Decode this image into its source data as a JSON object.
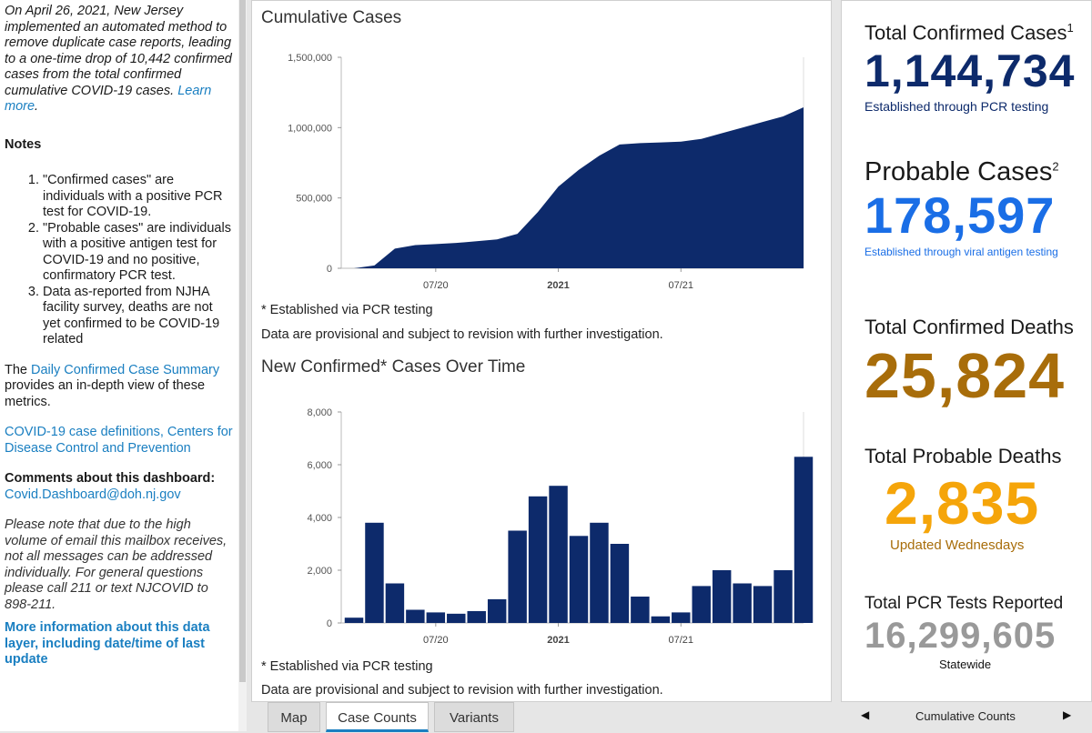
{
  "sidebar": {
    "notice": "On April 26, 2021, New Jersey implemented an automated method to remove duplicate case reports, leading to a one-time drop of 10,442 confirmed cases from the total confirmed cumulative COVID-19 cases.",
    "notice_link": "Learn more",
    "notes_heading": "Notes",
    "notes": [
      "\"Confirmed cases\" are individuals with a positive PCR test for COVID-19.",
      "\"Probable cases\" are individuals with a positive antigen test for COVID-19 and no positive, confirmatory PCR test.",
      "Data as-reported from NJHA facility survey, deaths are not yet confirmed to be COVID-19 related"
    ],
    "summary_prefix": "The ",
    "summary_link": "Daily Confirmed Case Summary",
    "summary_suffix": " provides an in-depth view of these metrics.",
    "cdc_link": "COVID-19 case definitions, Centers for Disease Control and Prevention",
    "comments_label": "Comments about this dashboard:",
    "comments_email": "Covid.Dashboard@doh.nj.gov",
    "email_note": "Please note that due to the high volume of email this mailbox receives, not all messages can be addressed individually. For general questions please call 211 or text NJCOVID to 898-211.",
    "more_info": "More information about this data layer, including date/time of last update"
  },
  "center": {
    "chart1_title": "Cumulative Cases",
    "chart1_note1": "* Established via PCR testing",
    "chart1_note2": "Data are provisional and subject to revision with further investigation.",
    "chart2_title": "New Confirmed* Cases Over Time",
    "chart2_note1": "* Established via PCR testing",
    "chart2_note2": "Data are provisional and subject to revision with further investigation."
  },
  "chart_data": [
    {
      "type": "area",
      "title": "Cumulative Cases",
      "x_ticks": [
        "07/20",
        "2021",
        "07/21"
      ],
      "y_ticks": [
        "0",
        "500,000",
        "1,000,000",
        "1,500,000"
      ],
      "ylim": [
        0,
        1500000
      ],
      "color": "#0d2a6b",
      "x": [
        "2020-03",
        "2020-04",
        "2020-05",
        "2020-06",
        "2020-07",
        "2020-08",
        "2020-09",
        "2020-10",
        "2020-11",
        "2020-12",
        "2021-01",
        "2021-02",
        "2021-03",
        "2021-04",
        "2021-05",
        "2021-06",
        "2021-07",
        "2021-08",
        "2021-09",
        "2021-10",
        "2021-11",
        "2021-12",
        "2022-01"
      ],
      "values": [
        0,
        20000,
        140000,
        165000,
        172000,
        180000,
        192000,
        205000,
        245000,
        400000,
        580000,
        700000,
        800000,
        880000,
        890000,
        895000,
        900000,
        920000,
        960000,
        1000000,
        1040000,
        1080000,
        1144734
      ]
    },
    {
      "type": "bar",
      "title": "New Confirmed* Cases Over Time",
      "x_ticks": [
        "07/20",
        "2021",
        "07/21"
      ],
      "y_ticks": [
        "0",
        "2,000",
        "4,000",
        "6,000",
        "8,000"
      ],
      "ylim": [
        0,
        8000
      ],
      "color": "#0d2a6b",
      "x": [
        "2020-03",
        "2020-04",
        "2020-05",
        "2020-06",
        "2020-07",
        "2020-08",
        "2020-09",
        "2020-10",
        "2020-11",
        "2020-12",
        "2021-01",
        "2021-02",
        "2021-03",
        "2021-04",
        "2021-05",
        "2021-06",
        "2021-07",
        "2021-08",
        "2021-09",
        "2021-10",
        "2021-11",
        "2021-12",
        "2022-01"
      ],
      "values": [
        200,
        3800,
        1500,
        500,
        400,
        350,
        450,
        900,
        3500,
        4800,
        5200,
        3300,
        3800,
        3000,
        1000,
        250,
        400,
        1400,
        2000,
        1500,
        1400,
        2000,
        6300
      ]
    }
  ],
  "right": {
    "confirmed_label": "Total Confirmed Cases",
    "confirmed_sup": "1",
    "confirmed_value": "1,144,734",
    "confirmed_sub": "Established through PCR testing",
    "probable_label": "Probable Cases",
    "probable_sup": "2",
    "probable_value": "178,597",
    "probable_sub": "Established through viral antigen testing",
    "deaths_label": "Total Confirmed Deaths",
    "deaths_value": "25,824",
    "pdeaths_label": "Total Probable Deaths",
    "pdeaths_value": "2,835",
    "pdeaths_sub": "Updated Wednesdays",
    "tests_label": "Total PCR Tests Reported",
    "tests_value": "16,299,605",
    "tests_sub": "Statewide",
    "colors": {
      "confirmed": "#0d2a6b",
      "probable": "#1a6ee6",
      "deaths": "#a86d0a",
      "pdeaths": "#f5a50a",
      "tests": "#999999"
    }
  },
  "tabs": [
    "Map",
    "Case Counts",
    "Variants"
  ],
  "active_tab": "Case Counts",
  "pager": {
    "label": "Cumulative Counts",
    "prev_icon": "left-arrow-icon",
    "next_icon": "right-arrow-icon"
  }
}
